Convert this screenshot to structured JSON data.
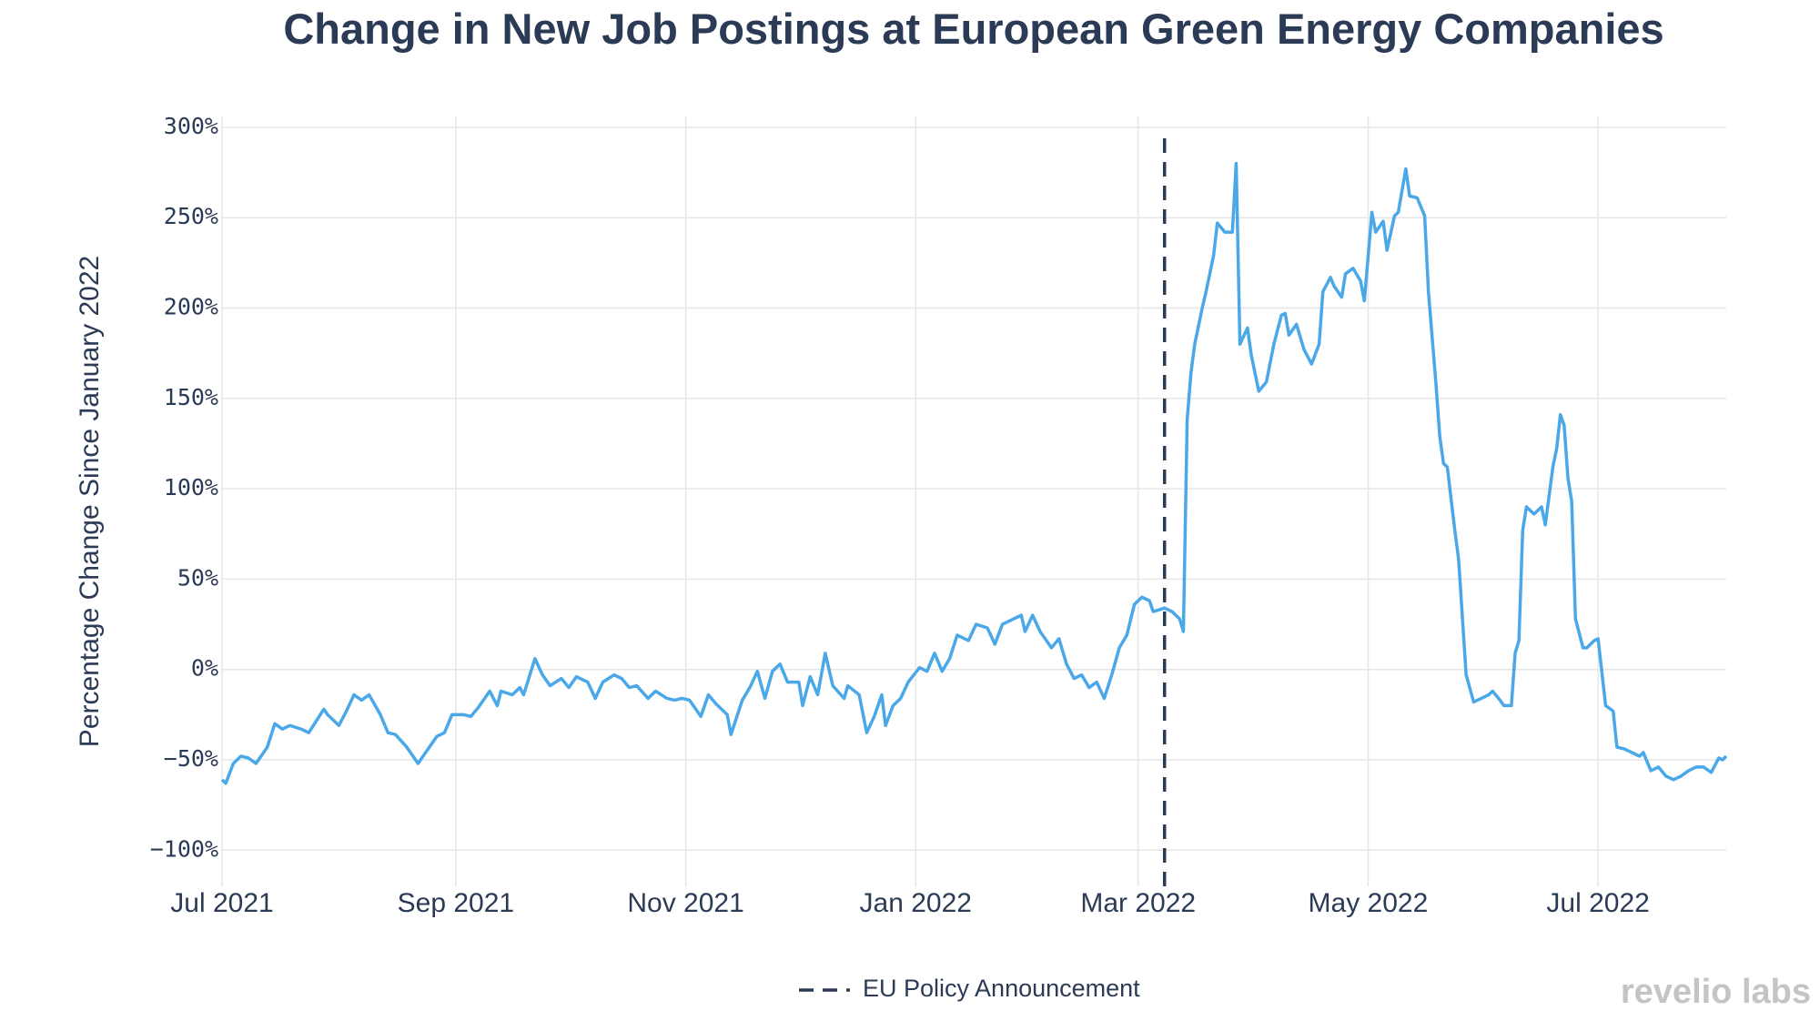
{
  "chart_data": {
    "type": "line",
    "title": "Change in New Job Postings at European Green Energy Companies",
    "y_label": "Percentage Change Since January 2022",
    "watermark": "revelio labs",
    "grid": true,
    "xlim": [
      "2021-07-01",
      "2022-08-04"
    ],
    "xticks": [
      {
        "value": "2021-07-01",
        "label": "Jul 2021"
      },
      {
        "value": "2021-09-01",
        "label": "Sep 2021"
      },
      {
        "value": "2021-11-01",
        "label": "Nov 2021"
      },
      {
        "value": "2022-01-01",
        "label": "Jan 2022"
      },
      {
        "value": "2022-03-01",
        "label": "Mar 2022"
      },
      {
        "value": "2022-05-01",
        "label": "May 2022"
      },
      {
        "value": "2022-07-01",
        "label": "Jul 2022"
      }
    ],
    "ylim": [
      -120,
      306
    ],
    "yticks": [
      {
        "value": -100,
        "label": "−100%"
      },
      {
        "value": -50,
        "label": "−50%"
      },
      {
        "value": 0,
        "label": "0%"
      },
      {
        "value": 50,
        "label": "50%"
      },
      {
        "value": 100,
        "label": "100%"
      },
      {
        "value": 150,
        "label": "150%"
      },
      {
        "value": 200,
        "label": "200%"
      },
      {
        "value": 250,
        "label": "250%"
      },
      {
        "value": 300,
        "label": "300%"
      }
    ],
    "annotation": {
      "x": "2022-03-08",
      "label": "EU Policy Announcement",
      "color": "#2b3a55"
    },
    "x": [
      "2021-07-01",
      "2021-07-02",
      "2021-07-04",
      "2021-07-06",
      "2021-07-08",
      "2021-07-10",
      "2021-07-13",
      "2021-07-15",
      "2021-07-17",
      "2021-07-19",
      "2021-07-22",
      "2021-07-24",
      "2021-07-28",
      "2021-07-29",
      "2021-08-01",
      "2021-08-03",
      "2021-08-05",
      "2021-08-07",
      "2021-08-09",
      "2021-08-12",
      "2021-08-14",
      "2021-08-16",
      "2021-08-19",
      "2021-08-22",
      "2021-08-24",
      "2021-08-27",
      "2021-08-29",
      "2021-08-31",
      "2021-09-03",
      "2021-09-05",
      "2021-09-07",
      "2021-09-10",
      "2021-09-12",
      "2021-09-13",
      "2021-09-16",
      "2021-09-18",
      "2021-09-19",
      "2021-09-22",
      "2021-09-24",
      "2021-09-26",
      "2021-09-29",
      "2021-10-01",
      "2021-10-03",
      "2021-10-06",
      "2021-10-08",
      "2021-10-10",
      "2021-10-13",
      "2021-10-15",
      "2021-10-17",
      "2021-10-19",
      "2021-10-22",
      "2021-10-24",
      "2021-10-27",
      "2021-10-29",
      "2021-10-31",
      "2021-11-02",
      "2021-11-05",
      "2021-11-07",
      "2021-11-09",
      "2021-11-12",
      "2021-11-13",
      "2021-11-16",
      "2021-11-18",
      "2021-11-20",
      "2021-11-22",
      "2021-11-24",
      "2021-11-26",
      "2021-11-28",
      "2021-12-01",
      "2021-12-02",
      "2021-12-04",
      "2021-12-06",
      "2021-12-08",
      "2021-12-10",
      "2021-12-13",
      "2021-12-14",
      "2021-12-17",
      "2021-12-19",
      "2021-12-21",
      "2021-12-23",
      "2021-12-24",
      "2021-12-26",
      "2021-12-28",
      "2021-12-30",
      "2022-01-02",
      "2022-01-04",
      "2022-01-06",
      "2022-01-08",
      "2022-01-10",
      "2022-01-12",
      "2022-01-15",
      "2022-01-17",
      "2022-01-20",
      "2022-01-22",
      "2022-01-24",
      "2022-01-27",
      "2022-01-29",
      "2022-01-30",
      "2022-02-01",
      "2022-02-03",
      "2022-02-06",
      "2022-02-08",
      "2022-02-10",
      "2022-02-12",
      "2022-02-14",
      "2022-02-16",
      "2022-02-18",
      "2022-02-20",
      "2022-02-22",
      "2022-02-24",
      "2022-02-26",
      "2022-02-28",
      "2022-03-02",
      "2022-03-04",
      "2022-03-05",
      "2022-03-08",
      "2022-03-10",
      "2022-03-12",
      "2022-03-13",
      "2022-03-14",
      "2022-03-15",
      "2022-03-16",
      "2022-03-18",
      "2022-03-19",
      "2022-03-21",
      "2022-03-22",
      "2022-03-24",
      "2022-03-26",
      "2022-03-27",
      "2022-03-28",
      "2022-03-30",
      "2022-03-31",
      "2022-04-02",
      "2022-04-04",
      "2022-04-06",
      "2022-04-08",
      "2022-04-09",
      "2022-04-10",
      "2022-04-12",
      "2022-04-14",
      "2022-04-16",
      "2022-04-18",
      "2022-04-19",
      "2022-04-21",
      "2022-04-22",
      "2022-04-24",
      "2022-04-25",
      "2022-04-27",
      "2022-04-29",
      "2022-04-30",
      "2022-05-02",
      "2022-05-03",
      "2022-05-05",
      "2022-05-06",
      "2022-05-08",
      "2022-05-09",
      "2022-05-11",
      "2022-05-12",
      "2022-05-14",
      "2022-05-16",
      "2022-05-17",
      "2022-05-19",
      "2022-05-20",
      "2022-05-21",
      "2022-05-22",
      "2022-05-24",
      "2022-05-25",
      "2022-05-27",
      "2022-05-29",
      "2022-05-30",
      "2022-06-02",
      "2022-06-03",
      "2022-06-05",
      "2022-06-06",
      "2022-06-08",
      "2022-06-09",
      "2022-06-10",
      "2022-06-11",
      "2022-06-12",
      "2022-06-14",
      "2022-06-16",
      "2022-06-17",
      "2022-06-19",
      "2022-06-20",
      "2022-06-21",
      "2022-06-22",
      "2022-06-23",
      "2022-06-24",
      "2022-06-25",
      "2022-06-27",
      "2022-06-28",
      "2022-06-30",
      "2022-07-01",
      "2022-07-03",
      "2022-07-05",
      "2022-07-06",
      "2022-07-08",
      "2022-07-10",
      "2022-07-12",
      "2022-07-13",
      "2022-07-15",
      "2022-07-17",
      "2022-07-19",
      "2022-07-21",
      "2022-07-23",
      "2022-07-25",
      "2022-07-27",
      "2022-07-29",
      "2022-07-31",
      "2022-08-02",
      "2022-08-03",
      "2022-08-04"
    ],
    "series": [
      {
        "name": "Change in New Job Postings",
        "color": "#4aa8e8",
        "values": [
          -61,
          -63,
          -52,
          -48,
          -49,
          -52,
          -43,
          -30,
          -33,
          -31,
          -33,
          -35,
          -22,
          -25,
          -31,
          -23,
          -14,
          -17,
          -14,
          -25,
          -35,
          -36,
          -43,
          -52,
          -46,
          -37,
          -35,
          -25,
          -25,
          -26,
          -21,
          -12,
          -20,
          -12,
          -14,
          -10,
          -14,
          6,
          -3,
          -9,
          -5,
          -10,
          -4,
          -7,
          -16,
          -7,
          -3,
          -5,
          -10,
          -9,
          -16,
          -12,
          -16,
          -17,
          -16,
          -17,
          -26,
          -14,
          -19,
          -25,
          -36,
          -17,
          -10,
          -1,
          -16,
          -1,
          3,
          -7,
          -7,
          -20,
          -4,
          -14,
          9,
          -9,
          -16,
          -9,
          -14,
          -35,
          -26,
          -14,
          -31,
          -20,
          -16,
          -7,
          1,
          -1,
          9,
          -1,
          6,
          19,
          16,
          25,
          23,
          14,
          25,
          28,
          30,
          21,
          30,
          21,
          12,
          17,
          3,
          -5,
          -3,
          -10,
          -7,
          -16,
          -3,
          12,
          19,
          36,
          40,
          38,
          32,
          34,
          32,
          28,
          21,
          138,
          164,
          180,
          200,
          209,
          229,
          247,
          242,
          242,
          280,
          180,
          189,
          174,
          154,
          159,
          180,
          196,
          197,
          185,
          191,
          177,
          169,
          180,
          209,
          217,
          212,
          206,
          219,
          222,
          215,
          204,
          253,
          242,
          248,
          232,
          251,
          253,
          277,
          262,
          261,
          251,
          209,
          158,
          129,
          114,
          112,
          77,
          61,
          -3,
          -18,
          -17,
          -14,
          -12,
          -17,
          -20,
          -20,
          9,
          16,
          77,
          90,
          86,
          90,
          80,
          112,
          122,
          141,
          135,
          106,
          93,
          28,
          12,
          12,
          16,
          17,
          -20,
          -23,
          -43,
          -44,
          -46,
          -48,
          -46,
          -56,
          -54,
          -59,
          -61,
          -59,
          -56,
          -54,
          -54,
          -57,
          -49,
          -50,
          -48
        ]
      }
    ]
  }
}
